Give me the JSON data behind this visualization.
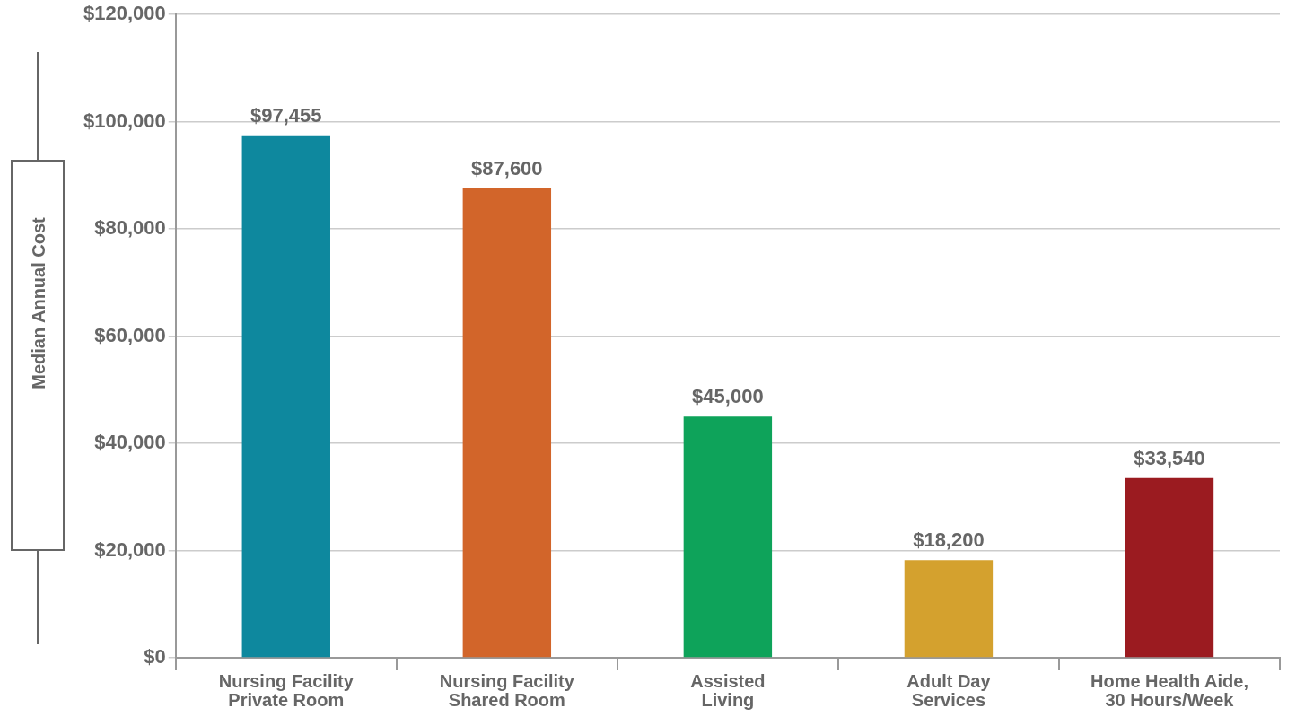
{
  "chart_data": {
    "type": "bar",
    "ylabel": "Median Annual Cost",
    "categories": [
      "Nursing Facility\nPrivate Room",
      "Nursing Facility\nShared Room",
      "Assisted\nLiving",
      "Adult Day\nServices",
      "Home Health Aide,\n30 Hours/Week"
    ],
    "values": [
      97455,
      87600,
      45000,
      18200,
      33540
    ],
    "colors": [
      "#0e889e",
      "#d2652a",
      "#0ea35a",
      "#d4a12e",
      "#9b1b20"
    ],
    "value_labels": [
      "$97,455",
      "$87,600",
      "$45,000",
      "$18,200",
      "$33,540"
    ],
    "ylim": [
      0,
      120000
    ],
    "yticks": [
      {
        "value": 0,
        "label": "$0"
      },
      {
        "value": 20000,
        "label": "$20,000"
      },
      {
        "value": 40000,
        "label": "$40,000"
      },
      {
        "value": 60000,
        "label": "$60,000"
      },
      {
        "value": 80000,
        "label": "$80,000"
      },
      {
        "value": 100000,
        "label": "$100,000"
      },
      {
        "value": 120000,
        "label": "$120,000"
      }
    ],
    "grid": "y",
    "legend": false
  }
}
